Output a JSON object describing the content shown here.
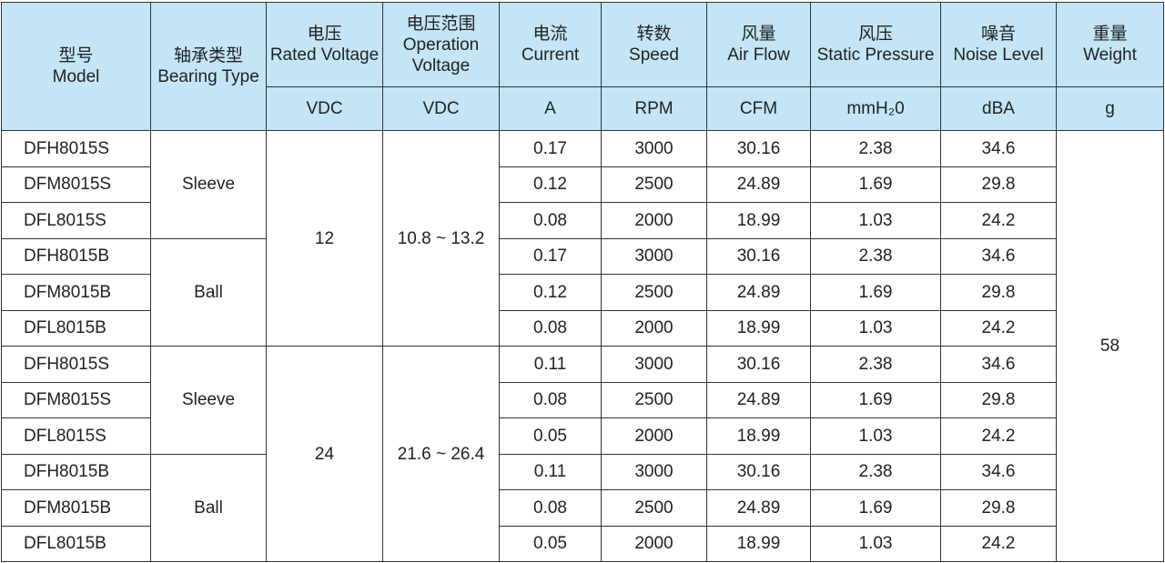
{
  "table": {
    "columns": [
      {
        "zh": "型号",
        "en": "Model"
      },
      {
        "zh": "轴承类型",
        "en": "Bearing Type"
      },
      {
        "zh": "电压",
        "en": "Rated Voltage",
        "unit": "VDC"
      },
      {
        "zh": "电压范围",
        "en": "Operation Voltage",
        "unit": "VDC"
      },
      {
        "zh": "电流",
        "en": "Current",
        "unit": "A"
      },
      {
        "zh": "转数",
        "en": "Speed",
        "unit": "RPM"
      },
      {
        "zh": "风量",
        "en": "Air Flow",
        "unit": "CFM"
      },
      {
        "zh": "风压",
        "en": "Static Pressure",
        "unit": "mmH₂0"
      },
      {
        "zh": "噪音",
        "en": "Noise Level",
        "unit": "dBA"
      },
      {
        "zh": "重量",
        "en": "Weight",
        "unit": "g"
      }
    ],
    "weight": "58",
    "groups": [
      {
        "rated": "12",
        "range": "10.8 ~ 13.2",
        "bearings": [
          {
            "type": "Sleeve",
            "rows": [
              [
                "DFH8015S",
                "0.17",
                "3000",
                "30.16",
                "2.38",
                "34.6"
              ],
              [
                "DFM8015S",
                "0.12",
                "2500",
                "24.89",
                "1.69",
                "29.8"
              ],
              [
                "DFL8015S",
                "0.08",
                "2000",
                "18.99",
                "1.03",
                "24.2"
              ]
            ]
          },
          {
            "type": "Ball",
            "rows": [
              [
                "DFH8015B",
                "0.17",
                "3000",
                "30.16",
                "2.38",
                "34.6"
              ],
              [
                "DFM8015B",
                "0.12",
                "2500",
                "24.89",
                "1.69",
                "29.8"
              ],
              [
                "DFL8015B",
                "0.08",
                "2000",
                "18.99",
                "1.03",
                "24.2"
              ]
            ]
          }
        ]
      },
      {
        "rated": "24",
        "range": "21.6 ~ 26.4",
        "bearings": [
          {
            "type": "Sleeve",
            "rows": [
              [
                "DFH8015S",
                "0.11",
                "3000",
                "30.16",
                "2.38",
                "34.6"
              ],
              [
                "DFM8015S",
                "0.08",
                "2500",
                "24.89",
                "1.69",
                "29.8"
              ],
              [
                "DFL8015S",
                "0.05",
                "2000",
                "18.99",
                "1.03",
                "24.2"
              ]
            ]
          },
          {
            "type": "Ball",
            "rows": [
              [
                "DFH8015B",
                "0.11",
                "3000",
                "30.16",
                "2.38",
                "34.6"
              ],
              [
                "DFM8015B",
                "0.08",
                "2500",
                "24.89",
                "1.69",
                "29.8"
              ],
              [
                "DFL8015B",
                "0.05",
                "2000",
                "18.99",
                "1.03",
                "24.2"
              ]
            ]
          }
        ]
      }
    ]
  }
}
